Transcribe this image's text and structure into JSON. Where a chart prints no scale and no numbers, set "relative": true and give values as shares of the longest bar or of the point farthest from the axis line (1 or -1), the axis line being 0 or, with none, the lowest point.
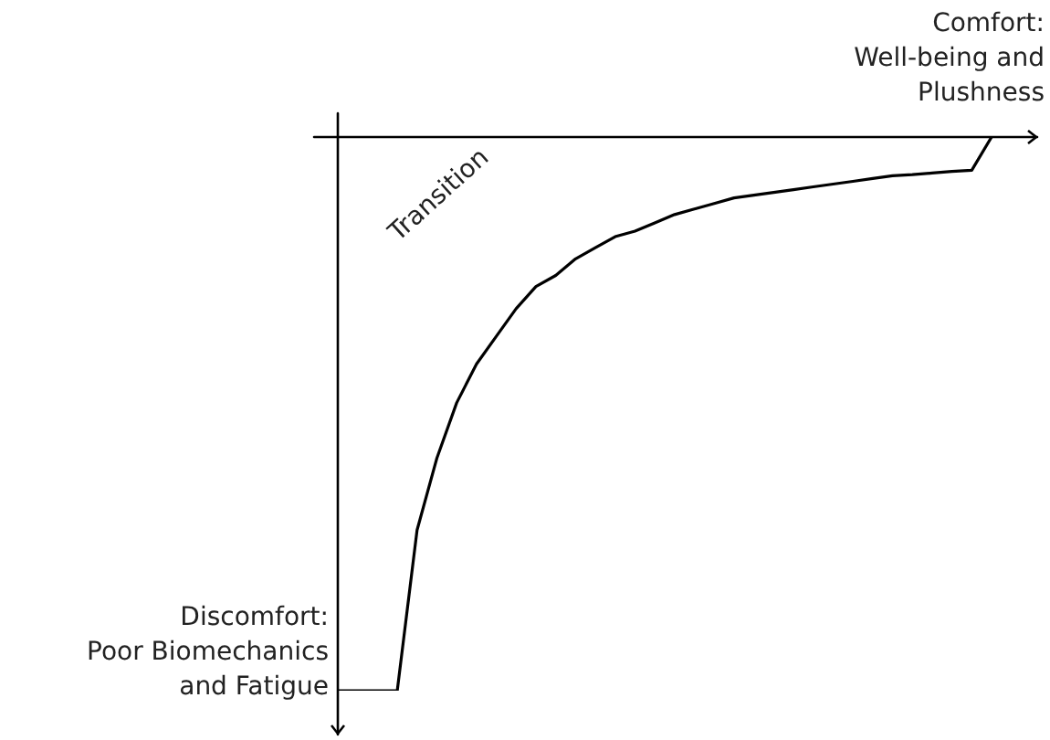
{
  "chart_data": {
    "type": "line",
    "relative": true,
    "color": "#000000",
    "categories": [
      null,
      null,
      null,
      null,
      null,
      null,
      null,
      null,
      null,
      null,
      null,
      null,
      null,
      null,
      null,
      null,
      null,
      null,
      null,
      null,
      null,
      null,
      null,
      null,
      null,
      null,
      null,
      null,
      null,
      null,
      null,
      null,
      null,
      null
    ],
    "values": [
      -1,
      -1,
      -1,
      -1,
      -0.71,
      -0.58,
      -0.48,
      -0.41,
      -0.36,
      -0.31,
      -0.27,
      -0.25,
      -0.22,
      -0.2,
      -0.18,
      -0.17,
      -0.155,
      -0.14,
      -0.13,
      -0.12,
      -0.11,
      -0.105,
      -0.1,
      -0.095,
      -0.09,
      -0.085,
      -0.08,
      -0.075,
      -0.07,
      -0.068,
      -0.065,
      -0.062,
      -0.06,
      0
    ],
    "annotations": [
      "Comfort:\nWell-being and\nPlushness",
      "Transition",
      "Discomfort:\nPoor Biomechanics\nand Fatigue"
    ]
  }
}
